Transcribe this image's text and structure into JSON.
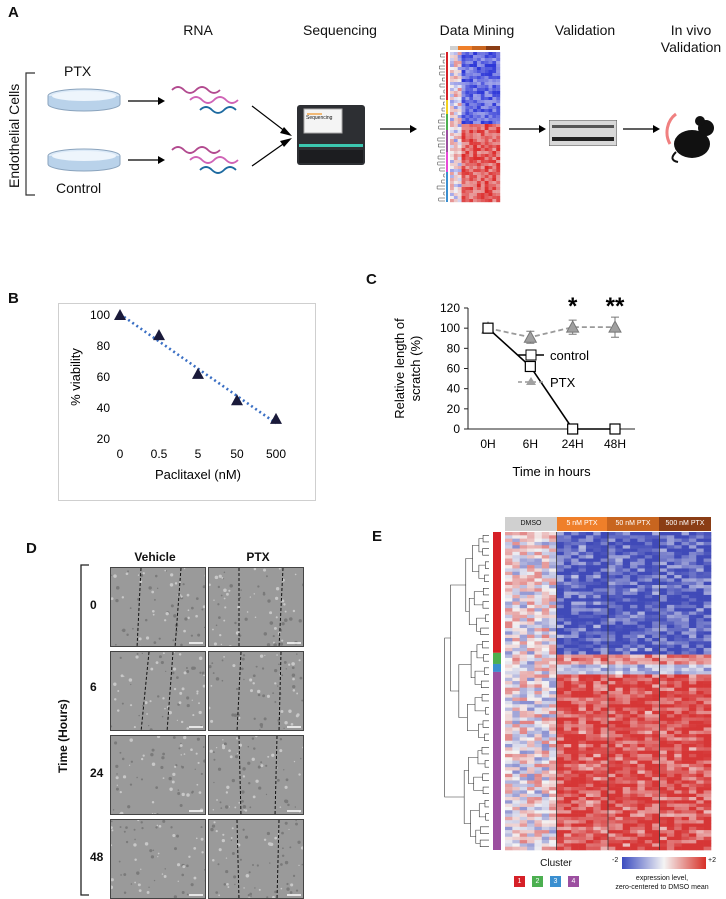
{
  "panel_labels": {
    "a": "A",
    "b": "B",
    "c": "C",
    "d": "D",
    "e": "E"
  },
  "panel_a": {
    "side_label": "Endothelial Cells",
    "dish_top": "PTX",
    "dish_bottom": "Control",
    "steps": [
      "RNA",
      "Sequencing",
      "Data Mining",
      "Validation",
      "In vivo\nValidation"
    ],
    "sequencer_screen": "Sequencing"
  },
  "panel_b": {
    "chart_data": {
      "type": "scatter",
      "title": "",
      "xlabel": "Paclitaxel (nM)",
      "ylabel": "% viability",
      "categories": [
        "0",
        "0.5",
        "5",
        "50",
        "500"
      ],
      "values": [
        100,
        87,
        62,
        45,
        33
      ],
      "ylim": [
        20,
        100
      ],
      "yticks": [
        20,
        40,
        60,
        80,
        100
      ],
      "trendline": "dotted linear",
      "colors": {
        "marker": "#1a1a3a",
        "trend": "#3a6fc4"
      }
    }
  },
  "panel_c": {
    "chart_data": {
      "type": "line",
      "xlabel": "Time in hours",
      "ylabel": "Relative length of scratch (%)",
      "ylabel_lines": [
        "Relative length of",
        "scratch (%)"
      ],
      "categories": [
        "0H",
        "6H",
        "24H",
        "48H"
      ],
      "ylim": [
        0,
        120
      ],
      "yticks": [
        0,
        20,
        40,
        60,
        80,
        100,
        120
      ],
      "series": [
        {
          "name": "control",
          "values": [
            100,
            62,
            0,
            0
          ],
          "marker": "open-square",
          "style": "solid",
          "color": "#000000"
        },
        {
          "name": "PTX",
          "values": [
            100,
            91,
            101,
            101
          ],
          "errors": [
            4,
            6,
            7,
            10
          ],
          "marker": "triangle",
          "style": "dashed",
          "color": "#9a9a9a"
        }
      ],
      "annotations": [
        {
          "category": "24H",
          "text": "*"
        },
        {
          "category": "48H",
          "text": "**"
        }
      ]
    }
  },
  "panel_d": {
    "col_headers": [
      "Vehicle",
      "PTX"
    ],
    "row_labels": [
      "0",
      "6",
      "24",
      "48"
    ],
    "axis_label": "Time (Hours)"
  },
  "panel_e": {
    "groups": [
      "DMSO",
      "5 nM PTX",
      "50 nM PTX",
      "500 nM PTX"
    ],
    "group_colors": [
      "#d0d0d0",
      "#ef7f2a",
      "#c8651f",
      "#8a3d15"
    ],
    "cluster_legend_title": "Cluster",
    "clusters": [
      "1",
      "2",
      "3",
      "4"
    ],
    "cluster_colors": [
      "#d62027",
      "#4caf50",
      "#3a8fd0",
      "#9c4fa0"
    ],
    "scale_min": "-2",
    "scale_max": "+2",
    "scale_caption_1": "expression level,",
    "scale_caption_2": "zero-centered to DMSO mean"
  }
}
